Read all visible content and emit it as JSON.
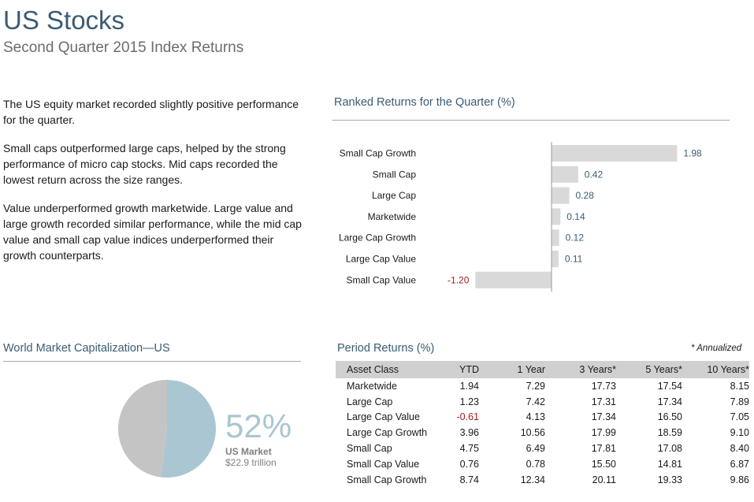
{
  "header": {
    "title": "US Stocks",
    "subtitle": "Second Quarter 2015 Index Returns"
  },
  "commentary": [
    "The US equity market recorded slightly positive performance for the quarter.",
    "Small caps outperformed large caps, helped by the strong performance of micro cap stocks. Mid caps recorded the lowest return across the size ranges.",
    "Value underperformed growth marketwide. Large value and large growth recorded similar performance, while the mid cap value and small cap value indices underperformed their growth counterparts."
  ],
  "ranked": {
    "title": "Ranked Returns for the Quarter (%)"
  },
  "world_cap": {
    "title": "World Market Capitalization—US",
    "percent_label": "52%",
    "name": "US Market",
    "value": "$22.9 trillion"
  },
  "period": {
    "title": "Period Returns (%)",
    "note": "* Annualized",
    "columns": [
      "Asset Class",
      "YTD",
      "1 Year",
      "3 Years*",
      "5 Years*",
      "10 Years*"
    ],
    "rows": [
      [
        "Marketwide",
        "1.94",
        "7.29",
        "17.73",
        "17.54",
        "8.15"
      ],
      [
        "Large Cap",
        "1.23",
        "7.42",
        "17.31",
        "17.34",
        "7.89"
      ],
      [
        "Large Cap Value",
        "-0.61",
        "4.13",
        "17.34",
        "16.50",
        "7.05"
      ],
      [
        "Large Cap Growth",
        "3.96",
        "10.56",
        "17.99",
        "18.59",
        "9.10"
      ],
      [
        "Small Cap",
        "4.75",
        "6.49",
        "17.81",
        "17.08",
        "8.40"
      ],
      [
        "Small Cap Value",
        "0.76",
        "0.78",
        "15.50",
        "14.81",
        "6.87"
      ],
      [
        "Small Cap Growth",
        "8.74",
        "12.34",
        "20.11",
        "19.33",
        "9.86"
      ]
    ]
  },
  "colors": {
    "accent": "#3b5b74",
    "bar": "#d9d9d9",
    "negative": "#a01e1e",
    "pie_us": "#a9c6d2",
    "pie_rest": "#c4c4c4"
  },
  "chart_data": [
    {
      "type": "bar",
      "orientation": "horizontal",
      "title": "Ranked Returns for the Quarter (%)",
      "categories": [
        "Small Cap Growth",
        "Small Cap",
        "Large Cap",
        "Marketwide",
        "Large Cap Growth",
        "Large Cap Value",
        "Small Cap Value"
      ],
      "values": [
        1.98,
        0.42,
        0.28,
        0.14,
        0.12,
        0.11,
        -1.2
      ],
      "value_labels": [
        "1.98",
        "0.42",
        "0.28",
        "0.14",
        "0.12",
        "0.11",
        "-1.20"
      ],
      "grid": false,
      "legend": "none"
    },
    {
      "type": "pie",
      "title": "World Market Capitalization—US",
      "slices": [
        {
          "name": "US Market",
          "value": 52
        },
        {
          "name": "",
          "value": 48
        }
      ],
      "legend": "none"
    }
  ]
}
